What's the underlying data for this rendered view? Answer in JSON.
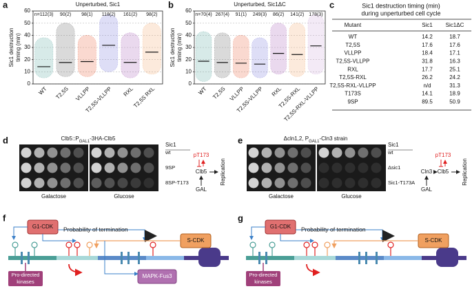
{
  "chart_data": [
    {
      "type": "strip",
      "panel": "a",
      "title": "Unperturbed, Sic1",
      "ylabel": [
        "Sic1 destruction",
        "timing (min)"
      ],
      "categories": [
        "WT",
        "T2,5S",
        "VLLPP",
        "T2,5S-VLLPP",
        "RXL",
        "T2,5S RXL"
      ],
      "n_labels": [
        "n=112(3)",
        "90(2)",
        "98(1)",
        "118(2)",
        "161(2)",
        "98(2)"
      ],
      "colors": [
        "#4a9e96",
        "#555555",
        "#e8502a",
        "#6a6ad8",
        "#a050b0",
        "#f0a060"
      ],
      "values": [
        14.2,
        17.6,
        18.4,
        31.8,
        17.7,
        26.2
      ],
      "ranges": [
        [
          5,
          38
        ],
        [
          6,
          50
        ],
        [
          6,
          40
        ],
        [
          10,
          57
        ],
        [
          5,
          42
        ],
        [
          8,
          50
        ]
      ],
      "ylim": [
        0,
        60
      ],
      "yticks": [
        0,
        10,
        20,
        30,
        40,
        50,
        60
      ],
      "grid": true
    },
    {
      "type": "strip",
      "panel": "b",
      "title": "Unperturbed, Sic1ΔC",
      "ylabel": [
        "Sic1 destruction",
        "timing (min)"
      ],
      "categories": [
        "WT",
        "T2,5S",
        "VLLPP",
        "T2,5S-VLLPP",
        "RXL",
        "T2,5S-RXL",
        "T2,5S-RXL-VLLPP"
      ],
      "n_labels": [
        "n=70(4)",
        "267(4)",
        "91(1)",
        "249(3)",
        "86(2)",
        "141(2)",
        "178(3)"
      ],
      "colors": [
        "#4a9e96",
        "#555555",
        "#e8502a",
        "#6a6ad8",
        "#a050b0",
        "#f0a060",
        "#c8a0d8"
      ],
      "values": [
        18.7,
        17.6,
        17.1,
        16.3,
        25.1,
        24.2,
        31.3
      ],
      "ranges": [
        [
          2,
          43
        ],
        [
          5,
          42
        ],
        [
          5,
          40
        ],
        [
          5,
          38
        ],
        [
          8,
          50
        ],
        [
          6,
          50
        ],
        [
          8,
          57
        ]
      ],
      "ylim": [
        0,
        60
      ],
      "yticks": [
        0,
        10,
        20,
        30,
        40,
        50,
        60
      ],
      "grid": true
    }
  ],
  "table": {
    "panel": "c",
    "title": [
      "Sic1 destruction timing (min)",
      "during unperturbed cell cycle"
    ],
    "columns": [
      "Mutant",
      "Sic1",
      "Sic1ΔC"
    ],
    "rows": [
      [
        "WT",
        "14.2",
        "18.7"
      ],
      [
        "T2,5S",
        "17.6",
        "17.6"
      ],
      [
        "VLLPP",
        "18.4",
        "17.1"
      ],
      [
        "T2,5S-VLLPP",
        "31.8",
        "16.3"
      ],
      [
        "RXL",
        "17.7",
        "25.1"
      ],
      [
        "T2,5S-RXL",
        "26.2",
        "24.2"
      ],
      [
        "T2,5S-RXL-VLLPP",
        "n/d",
        "31.3"
      ],
      [
        "T173S",
        "14.1",
        "18.9"
      ],
      [
        "9SP",
        "89.5",
        "50.9"
      ]
    ]
  },
  "spot_assays": [
    {
      "panel": "d",
      "header": [
        "Clb5::P",
        "GAL1",
        "-3HA-Clb5"
      ],
      "column_label": "Sic1",
      "rows": [
        "wt",
        "9SP",
        "8SP-T173"
      ],
      "media": [
        "Galactose",
        "Glucose"
      ],
      "scheme": {
        "phospho": "pT173",
        "nodes": [
          "Clb5",
          "GAL"
        ],
        "output": "Replication"
      }
    },
    {
      "panel": "e",
      "header": [
        "Δcln1,2, P",
        "GAL1",
        "-Cln3 strain"
      ],
      "column_label": "Sic1",
      "rows": [
        "wt",
        "Δsic1",
        "Sic1-T173A"
      ],
      "media": [
        "Galactose",
        "Glucose"
      ],
      "scheme": {
        "phospho": "pT173",
        "nodes": [
          "Cln3",
          "Clb5",
          "GAL"
        ],
        "output": "Replication"
      }
    }
  ],
  "diagrams": [
    {
      "panel": "f",
      "g1": "G1-CDK",
      "termination": "Probability of termination",
      "scdk": "S-CDK",
      "kinases": [
        "Pro-directed",
        "kinases"
      ],
      "mapk": "MAPK-Fus3"
    },
    {
      "panel": "g",
      "g1": "G1-CDK",
      "termination": "Probability of termination",
      "scdk": "S-CDK",
      "kinases": [
        "Pro-directed",
        "kinases"
      ]
    }
  ]
}
